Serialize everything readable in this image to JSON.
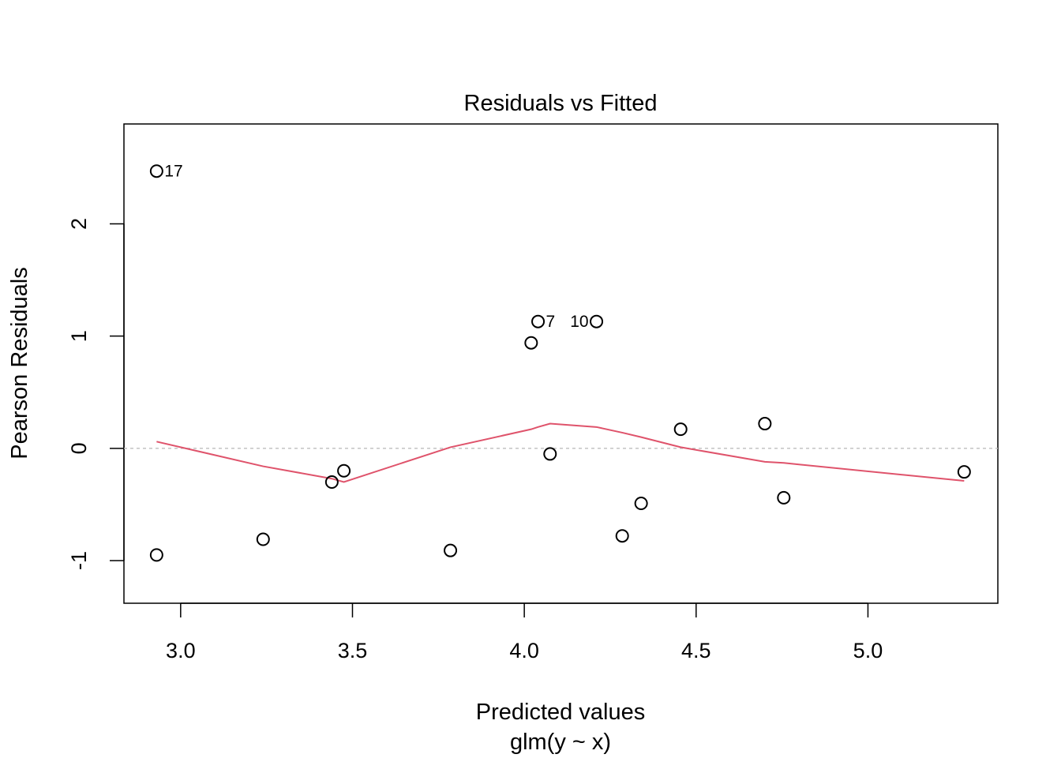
{
  "chart_data": {
    "type": "scatter",
    "title": "Residuals vs Fitted",
    "xlabel": "Predicted values",
    "xlabel_sub": "glm(y ~ x)",
    "ylabel": "Pearson Residuals",
    "xlim": [
      2.835,
      5.378
    ],
    "ylim": [
      -1.38,
      2.89
    ],
    "x_ticks": [
      3.0,
      3.5,
      4.0,
      4.5,
      5.0
    ],
    "x_tick_labels": [
      "3.0",
      "3.5",
      "4.0",
      "4.5",
      "5.0"
    ],
    "y_ticks": [
      -1,
      0,
      1,
      2
    ],
    "y_tick_labels": [
      "-1",
      "0",
      "1",
      "2"
    ],
    "reference_line_y": 0,
    "grid": false,
    "points": [
      {
        "x": 2.93,
        "y": 2.47,
        "label": "17"
      },
      {
        "x": 2.93,
        "y": -0.95
      },
      {
        "x": 3.24,
        "y": -0.81
      },
      {
        "x": 3.44,
        "y": -0.3
      },
      {
        "x": 3.475,
        "y": -0.2
      },
      {
        "x": 3.785,
        "y": -0.91
      },
      {
        "x": 4.02,
        "y": 0.94
      },
      {
        "x": 4.04,
        "y": 1.13,
        "label": "7"
      },
      {
        "x": 4.075,
        "y": -0.05
      },
      {
        "x": 4.21,
        "y": 1.13,
        "label": "10"
      },
      {
        "x": 4.285,
        "y": -0.78
      },
      {
        "x": 4.34,
        "y": -0.49
      },
      {
        "x": 4.455,
        "y": 0.17
      },
      {
        "x": 4.7,
        "y": 0.22
      },
      {
        "x": 4.755,
        "y": -0.44
      },
      {
        "x": 5.28,
        "y": -0.21
      }
    ],
    "smooth_line": {
      "color": "#DF536B",
      "points": [
        [
          2.93,
          0.06
        ],
        [
          3.24,
          -0.16
        ],
        [
          3.44,
          -0.27
        ],
        [
          3.475,
          -0.3
        ],
        [
          3.785,
          0.01
        ],
        [
          4.02,
          0.17
        ],
        [
          4.04,
          0.19
        ],
        [
          4.075,
          0.22
        ],
        [
          4.21,
          0.19
        ],
        [
          4.285,
          0.14
        ],
        [
          4.34,
          0.1
        ],
        [
          4.455,
          0.01
        ],
        [
          4.7,
          -0.12
        ],
        [
          4.755,
          -0.13
        ],
        [
          5.28,
          -0.29
        ]
      ]
    },
    "colors": {
      "points": "#000000",
      "smooth": "#DF536B",
      "reference": "#BEBEBE"
    }
  }
}
